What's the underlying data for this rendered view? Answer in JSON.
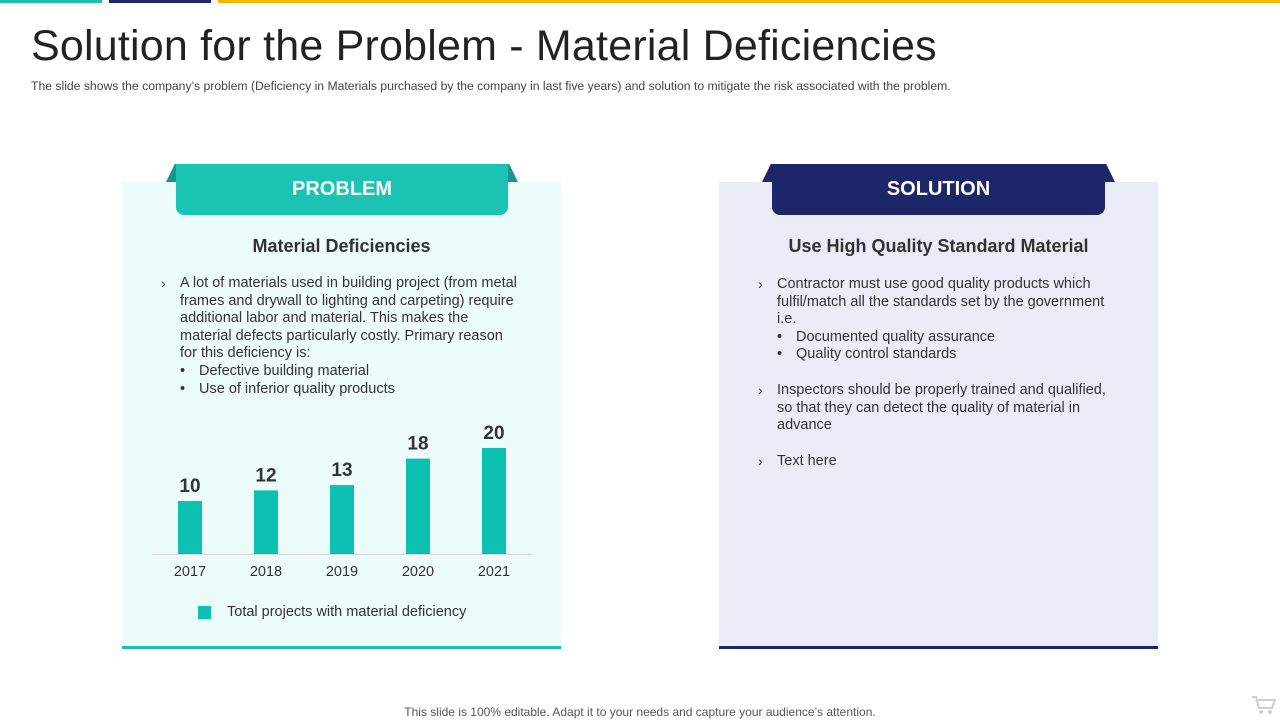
{
  "slide": {
    "title": "Solution for the Problem - Material Deficiencies",
    "subtitle": "The slide shows the company’s problem (Deficiency in Materials purchased by the company in last five  years) and solution to mitigate the risk associated with the problem.",
    "footer": "This slide is 100% editable. Adapt it to your needs and capture your audience’s attention."
  },
  "colors": {
    "teal": "#1ac3b2",
    "teal_dark": "#16978a",
    "navy": "#1c2668",
    "teal_bg": "#ebfcfb",
    "navy_bg": "#eaedf8",
    "top_bar": [
      "#1fbfaf",
      "#1c2668",
      "#f5b800"
    ]
  },
  "problem": {
    "tab_label": "PROBLEM",
    "heading": "Material Deficiencies",
    "bullet_lines": [
      "A lot of materials used in building project (from metal",
      "frames and drywall to lighting  and carpeting) require",
      "additional labor and material. This makes the",
      "material defects particularly costly. Primary reason",
      "for this deficiency is:"
    ],
    "sub_bullets": [
      "Defective building material",
      "Use of inferior quality products"
    ]
  },
  "solution": {
    "tab_label": "SOLUTION",
    "heading": "Use High Quality Standard Material",
    "bullet1_lines": [
      "Contractor must use good quality products which",
      "fulfil/match all the standards set by the government",
      "i.e."
    ],
    "sub_bullets": [
      "Documented quality assurance",
      "Quality control standards"
    ],
    "bullet2_lines": [
      "Inspectors should be properly trained and qualified,",
      "so that they can detect the quality  of material in",
      "advance"
    ],
    "bullet3": "Text here"
  },
  "chart_data": {
    "type": "bar",
    "categories": [
      "2017",
      "2018",
      "2019",
      "2020",
      "2021"
    ],
    "series": [
      {
        "name": "Total projects with material deficiency",
        "values": [
          10,
          12,
          13,
          18,
          20
        ]
      }
    ],
    "ylim": [
      0,
      20
    ],
    "grid": false,
    "legend_position": "bottom",
    "bar_color": "#0cc1b1"
  },
  "icons": {
    "chevron": "›",
    "bullet": "•",
    "cart": "shopping-cart-icon"
  }
}
